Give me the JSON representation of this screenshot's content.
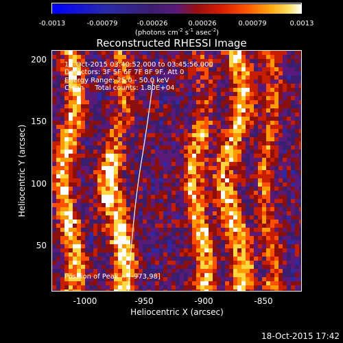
{
  "colorbar": {
    "ticks": [
      "-0.0013",
      "-0.00079",
      "-0.00026",
      "0.00026",
      "0.00079",
      "0.0013"
    ],
    "unit_prefix": "(photons cm",
    "unit_mid1": " s",
    "unit_mid2": " asec",
    "unit_suffix": ")",
    "exp1": "-2",
    "exp2": "-1",
    "exp3": "-2"
  },
  "title": "Reconstructed RHESSI Image",
  "annotations": {
    "time": "18-Oct-2015 03:40:52.000 to 03:45:56.000",
    "detectors": "Detectors: 3F 5F 6F 7F 8F 9F, Att 0",
    "energy": "Energy Range: 25.0 - 50.0 keV",
    "clean": "Clean     Total counts: 1.80E+04"
  },
  "peak": "Position of Peak = [-973,98]",
  "axes": {
    "xlabel": "Heliocentric X (arcsec)",
    "ylabel": "Heliocentric Y (arcsec)",
    "xticks": [
      "-1000",
      "-950",
      "-900",
      "-850"
    ],
    "yticks": [
      "200",
      "150",
      "100",
      "50"
    ]
  },
  "footer": "18-Oct-2015 17:42",
  "colors": {
    "background": "#000000",
    "colormap": [
      "#0000ff",
      "#2a2aa8",
      "#3a1f6e",
      "#5a1a7a",
      "#8a1010",
      "#c81e00",
      "#ff5000",
      "#ff9a00",
      "#ffd840",
      "#ffffff"
    ]
  }
}
